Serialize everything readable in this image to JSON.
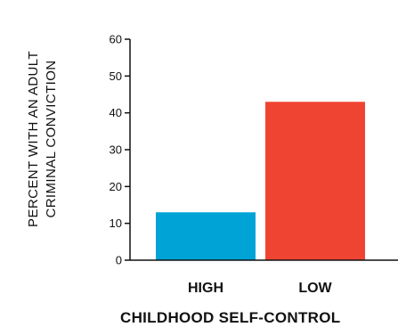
{
  "chart_data": {
    "type": "bar",
    "categories": [
      "HIGH",
      "LOW"
    ],
    "values": [
      13,
      43
    ],
    "colors": [
      "#00a3d6",
      "#f04433"
    ],
    "ylabel_lines": [
      "PERCENT WITH AN ADULT",
      "CRIMINAL CONVICTION"
    ],
    "xlabel": "CHILDHOOD SELF-CONTROL",
    "ylim": [
      0,
      60
    ],
    "yticks": [
      0,
      10,
      20,
      30,
      40,
      50,
      60
    ],
    "grid": false
  }
}
